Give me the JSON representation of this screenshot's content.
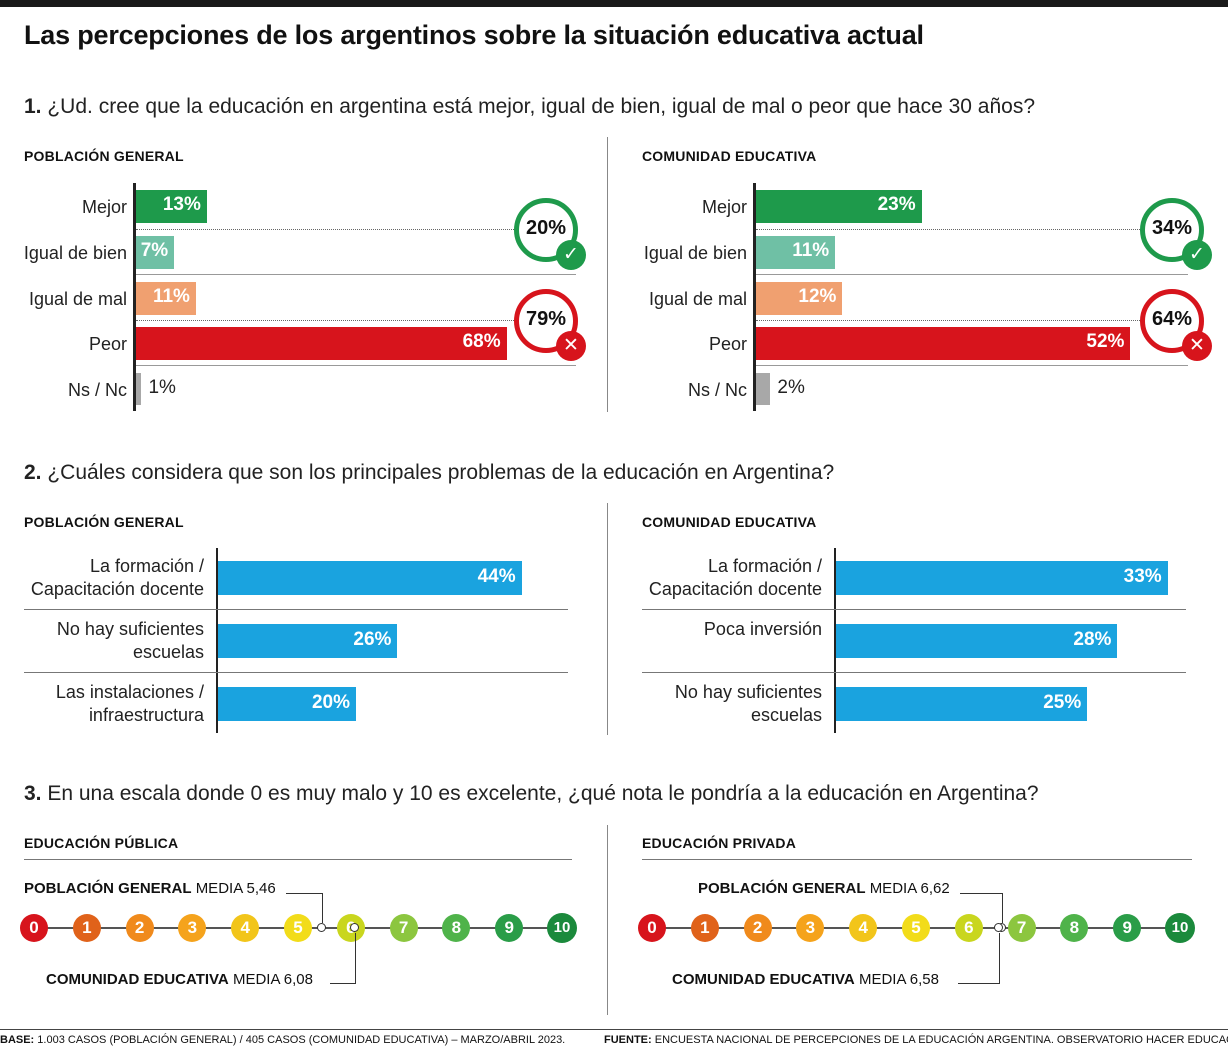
{
  "title": "Las percepciones de los argentinos sobre la situación educativa actual",
  "q1": {
    "num": "1.",
    "text": "¿Ud. cree que la educación en argentina está mejor, igual de bien, igual de mal o peor que hace 30 años?",
    "left": {
      "heading": "POBLACIÓN GENERAL",
      "rows": [
        {
          "label": "Mejor",
          "value": "13%"
        },
        {
          "label": "Igual de bien",
          "value": "7%"
        },
        {
          "label": "Igual de mal",
          "value": "11%"
        },
        {
          "label": "Peor",
          "value": "68%"
        },
        {
          "label": "Ns / Nc",
          "value": "1%"
        }
      ],
      "positive_total": "20%",
      "negative_total": "79%"
    },
    "right": {
      "heading": "COMUNIDAD EDUCATIVA",
      "rows": [
        {
          "label": "Mejor",
          "value": "23%"
        },
        {
          "label": "Igual de bien",
          "value": "11%"
        },
        {
          "label": "Igual de mal",
          "value": "12%"
        },
        {
          "label": "Peor",
          "value": "52%"
        },
        {
          "label": "Ns / Nc",
          "value": "2%"
        }
      ],
      "positive_total": "34%",
      "negative_total": "64%"
    }
  },
  "q2": {
    "num": "2.",
    "text": "¿Cuáles considera que son los principales problemas de la educación en Argentina?",
    "left": {
      "heading": "POBLACIÓN GENERAL",
      "rows": [
        {
          "label1": "La formación /",
          "label2": "Capacitación docente",
          "value": "44%"
        },
        {
          "label1": "No hay suficientes",
          "label2": "escuelas",
          "value": "26%"
        },
        {
          "label1": "Las instalaciones /",
          "label2": "infraestructura",
          "value": "20%"
        }
      ]
    },
    "right": {
      "heading": "COMUNIDAD EDUCATIVA",
      "rows": [
        {
          "label1": "La formación /",
          "label2": "Capacitación docente",
          "value": "33%"
        },
        {
          "label1": "Poca inversión",
          "label2": "",
          "value": "28%"
        },
        {
          "label1": "No hay suficientes",
          "label2": "escuelas",
          "value": "25%"
        }
      ]
    }
  },
  "q3": {
    "num": "3.",
    "text": "En una escala donde 0 es muy malo y 10 es excelente, ¿qué nota le pondría a la educación en Argentina?",
    "scale": [
      "0",
      "1",
      "2",
      "3",
      "4",
      "5",
      "6",
      "7",
      "8",
      "9",
      "10"
    ],
    "left": {
      "heading": "EDUCACIÓN PÚBLICA",
      "top_group": "POBLACIÓN GENERAL",
      "top_media": "MEDIA 5,46",
      "bottom_group": "COMUNIDAD EDUCATIVA",
      "bottom_media": "MEDIA 6,08"
    },
    "right": {
      "heading": "EDUCACIÓN PRIVADA",
      "top_group": "POBLACIÓN GENERAL",
      "top_media": "MEDIA 6,62",
      "bottom_group": "COMUNIDAD EDUCATIVA",
      "bottom_media": "MEDIA 6,58"
    }
  },
  "footer": {
    "base_label": "BASE:",
    "base_text": "1.003 CASOS (POBLACIÓN GENERAL) / 405 CASOS (COMUNIDAD EDUCATIVA) – MARZO/ABRIL 2023.",
    "source_label": "FUENTE:",
    "source_text": "ENCUESTA NACIONAL DE PERCEPCIONES DE LA EDUCACIÓN ARGENTINA. OBSERVATORIO HACER EDUCACIÓN"
  },
  "colors": {
    "mejor": "#1e9a4b",
    "igual_bien": "#6fc0a5",
    "igual_mal": "#f0a070",
    "peor": "#d7141c",
    "nsnc": "#a8a8a8",
    "blue": "#1aa3df",
    "check": "#1e9a4b",
    "cross": "#d7141c",
    "scale": [
      "#d7141c",
      "#e0621a",
      "#f08a1c",
      "#f5a31c",
      "#f2c51a",
      "#f2dc1a",
      "#c9d61e",
      "#8cc63f",
      "#4fb34a",
      "#2a9d48",
      "#1b8a3c"
    ]
  },
  "chart_data": [
    {
      "type": "bar",
      "title": "1. Población general",
      "categories": [
        "Mejor",
        "Igual de bien",
        "Igual de mal",
        "Peor",
        "Ns / Nc"
      ],
      "values": [
        13,
        7,
        11,
        68,
        1
      ],
      "groups": {
        "positivo": 20,
        "negativo": 79
      }
    },
    {
      "type": "bar",
      "title": "1. Comunidad educativa",
      "categories": [
        "Mejor",
        "Igual de bien",
        "Igual de mal",
        "Peor",
        "Ns / Nc"
      ],
      "values": [
        23,
        11,
        12,
        52,
        2
      ],
      "groups": {
        "positivo": 34,
        "negativo": 64
      }
    },
    {
      "type": "bar",
      "title": "2. Población general",
      "categories": [
        "La formación / Capacitación docente",
        "No hay suficientes escuelas",
        "Las instalaciones / infraestructura"
      ],
      "values": [
        44,
        26,
        20
      ]
    },
    {
      "type": "bar",
      "title": "2. Comunidad educativa",
      "categories": [
        "La formación / Capacitación docente",
        "Poca inversión",
        "No hay suficientes escuelas"
      ],
      "values": [
        33,
        28,
        25
      ]
    },
    {
      "type": "scatter",
      "title": "3. Educación pública",
      "x_range": [
        0,
        10
      ],
      "points": [
        {
          "name": "Población general",
          "x": 5.46
        },
        {
          "name": "Comunidad educativa",
          "x": 6.08
        }
      ]
    },
    {
      "type": "scatter",
      "title": "3. Educación privada",
      "x_range": [
        0,
        10
      ],
      "points": [
        {
          "name": "Población general",
          "x": 6.62
        },
        {
          "name": "Comunidad educativa",
          "x": 6.58
        }
      ]
    }
  ]
}
